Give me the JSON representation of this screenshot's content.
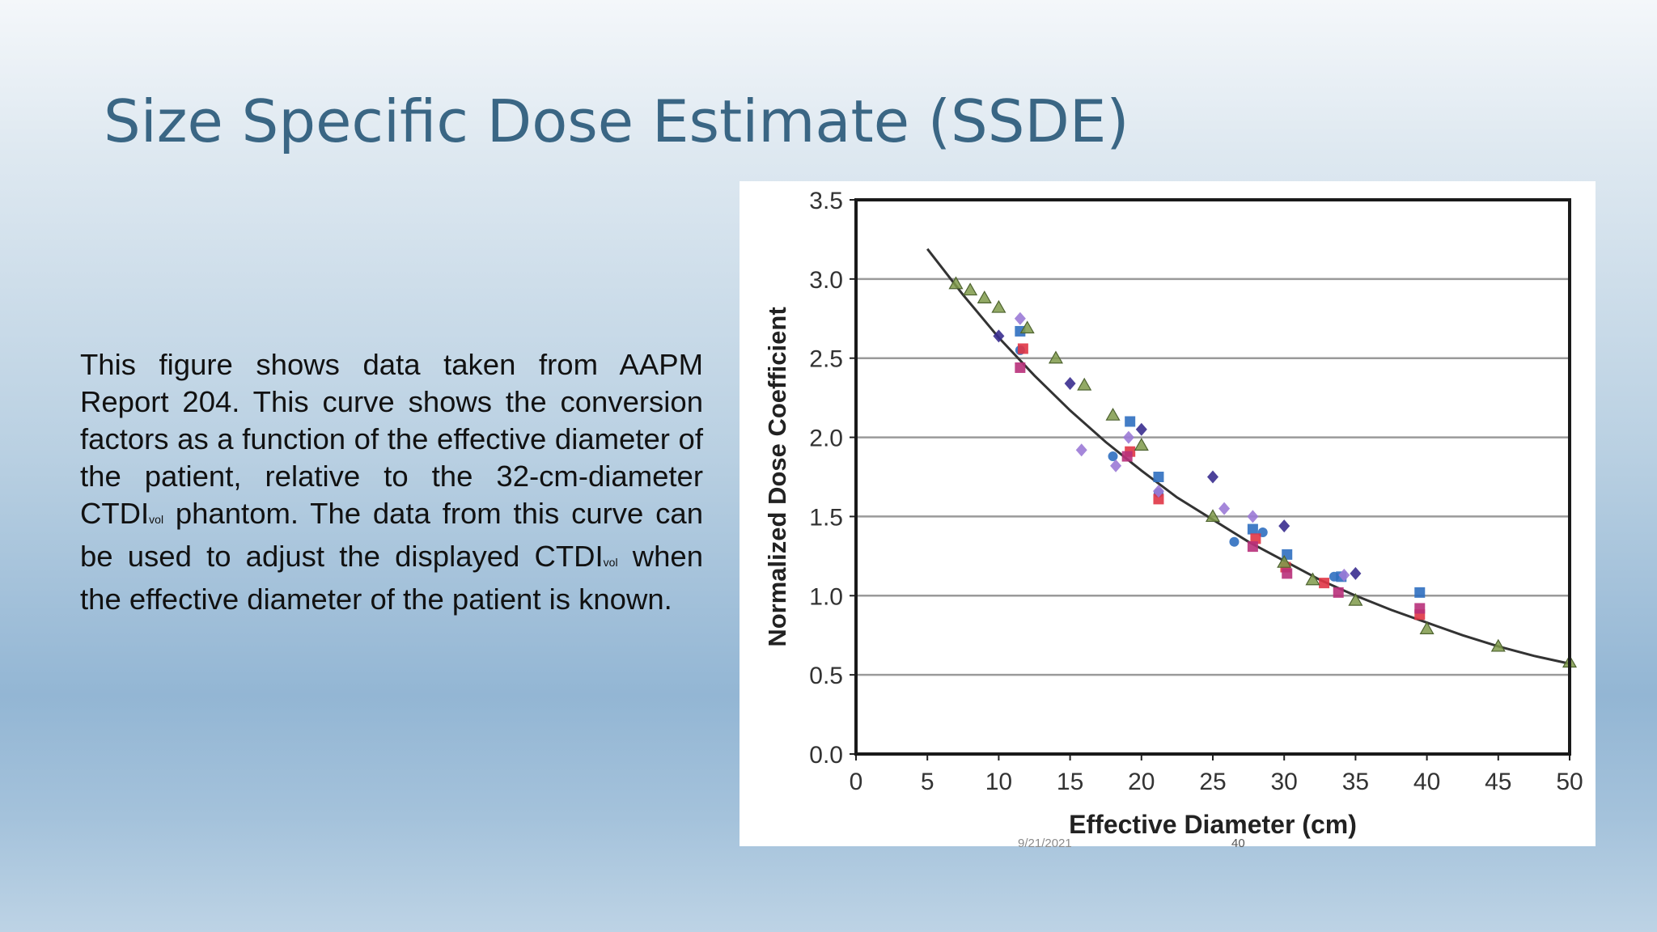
{
  "slide": {
    "title": "Size Specific Dose Estimate (SSDE)",
    "body": {
      "part1": "This figure shows data taken from AAPM Report 204. This curve shows the conversion factors as a function of the effective diameter of the patient, relative to the 32-cm-diameter CTDI",
      "sub1": "vol",
      "part2": " phantom. The data from this curve can be used to adjust the displayed CTDI",
      "sub2": "vol",
      "part3": " when the effective diameter of the patient is known."
    },
    "footer": {
      "date": "9/21/2021",
      "page": "40"
    }
  },
  "chart_data": {
    "type": "scatter",
    "xlabel": "Effective Diameter (cm)",
    "ylabel": "Normalized Dose Coefficient",
    "xlim": [
      0,
      50
    ],
    "ylim": [
      0,
      3.5
    ],
    "xticks": [
      "0",
      "5",
      "10",
      "15",
      "20",
      "25",
      "30",
      "35",
      "40",
      "45",
      "50"
    ],
    "yticks": [
      "0.0",
      "0.5",
      "1.0",
      "1.5",
      "2.0",
      "2.5",
      "3.0",
      "3.5"
    ],
    "grid": "horizontal",
    "colors": {
      "curve": "#333333",
      "navy": "#3a2d8f",
      "blue": "#2f6fc0",
      "red": "#e03545",
      "magenta": "#b8307a",
      "violet": "#9b7ad6",
      "olive": "#7f9a4a",
      "gridline": "#9a9a9a"
    },
    "curve": {
      "name": "",
      "x": [
        5,
        7.5,
        10,
        12.5,
        15,
        17.5,
        20,
        22.5,
        25,
        27.5,
        30,
        32.5,
        35,
        37.5,
        40,
        42.5,
        45,
        47.5,
        50
      ],
      "y": [
        3.19,
        2.9,
        2.63,
        2.39,
        2.17,
        1.97,
        1.79,
        1.62,
        1.48,
        1.34,
        1.22,
        1.1,
        1.0,
        0.91,
        0.83,
        0.75,
        0.68,
        0.62,
        0.57
      ]
    },
    "series": [
      {
        "marker": "diamond",
        "color": "navy",
        "x": [
          10,
          15,
          20,
          25,
          30,
          35
        ],
        "y": [
          2.64,
          2.34,
          2.05,
          1.75,
          1.44,
          1.14
        ]
      },
      {
        "marker": "circle",
        "color": "blue",
        "x": [
          11.5,
          18,
          21.2,
          26.5,
          28.5,
          33.5
        ],
        "y": [
          2.55,
          1.88,
          1.65,
          1.34,
          1.4,
          1.12
        ]
      },
      {
        "marker": "square",
        "color": "blue",
        "x": [
          11.5,
          19.2,
          21.2,
          27.8,
          30.2,
          34,
          39.5
        ],
        "y": [
          2.67,
          2.1,
          1.75,
          1.42,
          1.26,
          1.12,
          1.02
        ]
      },
      {
        "marker": "square",
        "color": "red",
        "x": [
          11.7,
          19.2,
          21.2,
          28,
          30.1,
          32.8,
          39.5
        ],
        "y": [
          2.56,
          1.91,
          1.61,
          1.36,
          1.18,
          1.08,
          0.88
        ]
      },
      {
        "marker": "square",
        "color": "magenta",
        "x": [
          11.5,
          19,
          27.8,
          30.2,
          33.8,
          39.5
        ],
        "y": [
          2.44,
          1.88,
          1.31,
          1.14,
          1.02,
          0.92
        ]
      },
      {
        "marker": "diamond",
        "color": "violet",
        "x": [
          11.5,
          15.8,
          18.2,
          19.1,
          21.2,
          25.8,
          27.8,
          34.2
        ],
        "y": [
          2.75,
          1.92,
          1.82,
          2.0,
          1.66,
          1.55,
          1.5,
          1.13
        ]
      },
      {
        "marker": "triangle",
        "color": "olive",
        "x": [
          7,
          8,
          9,
          10,
          12,
          14,
          16,
          18,
          20,
          25,
          30,
          32,
          35,
          40,
          45,
          50
        ],
        "y": [
          2.97,
          2.93,
          2.88,
          2.82,
          2.69,
          2.5,
          2.33,
          2.14,
          1.95,
          1.5,
          1.21,
          1.1,
          0.97,
          0.79,
          0.68,
          0.58
        ]
      }
    ]
  }
}
